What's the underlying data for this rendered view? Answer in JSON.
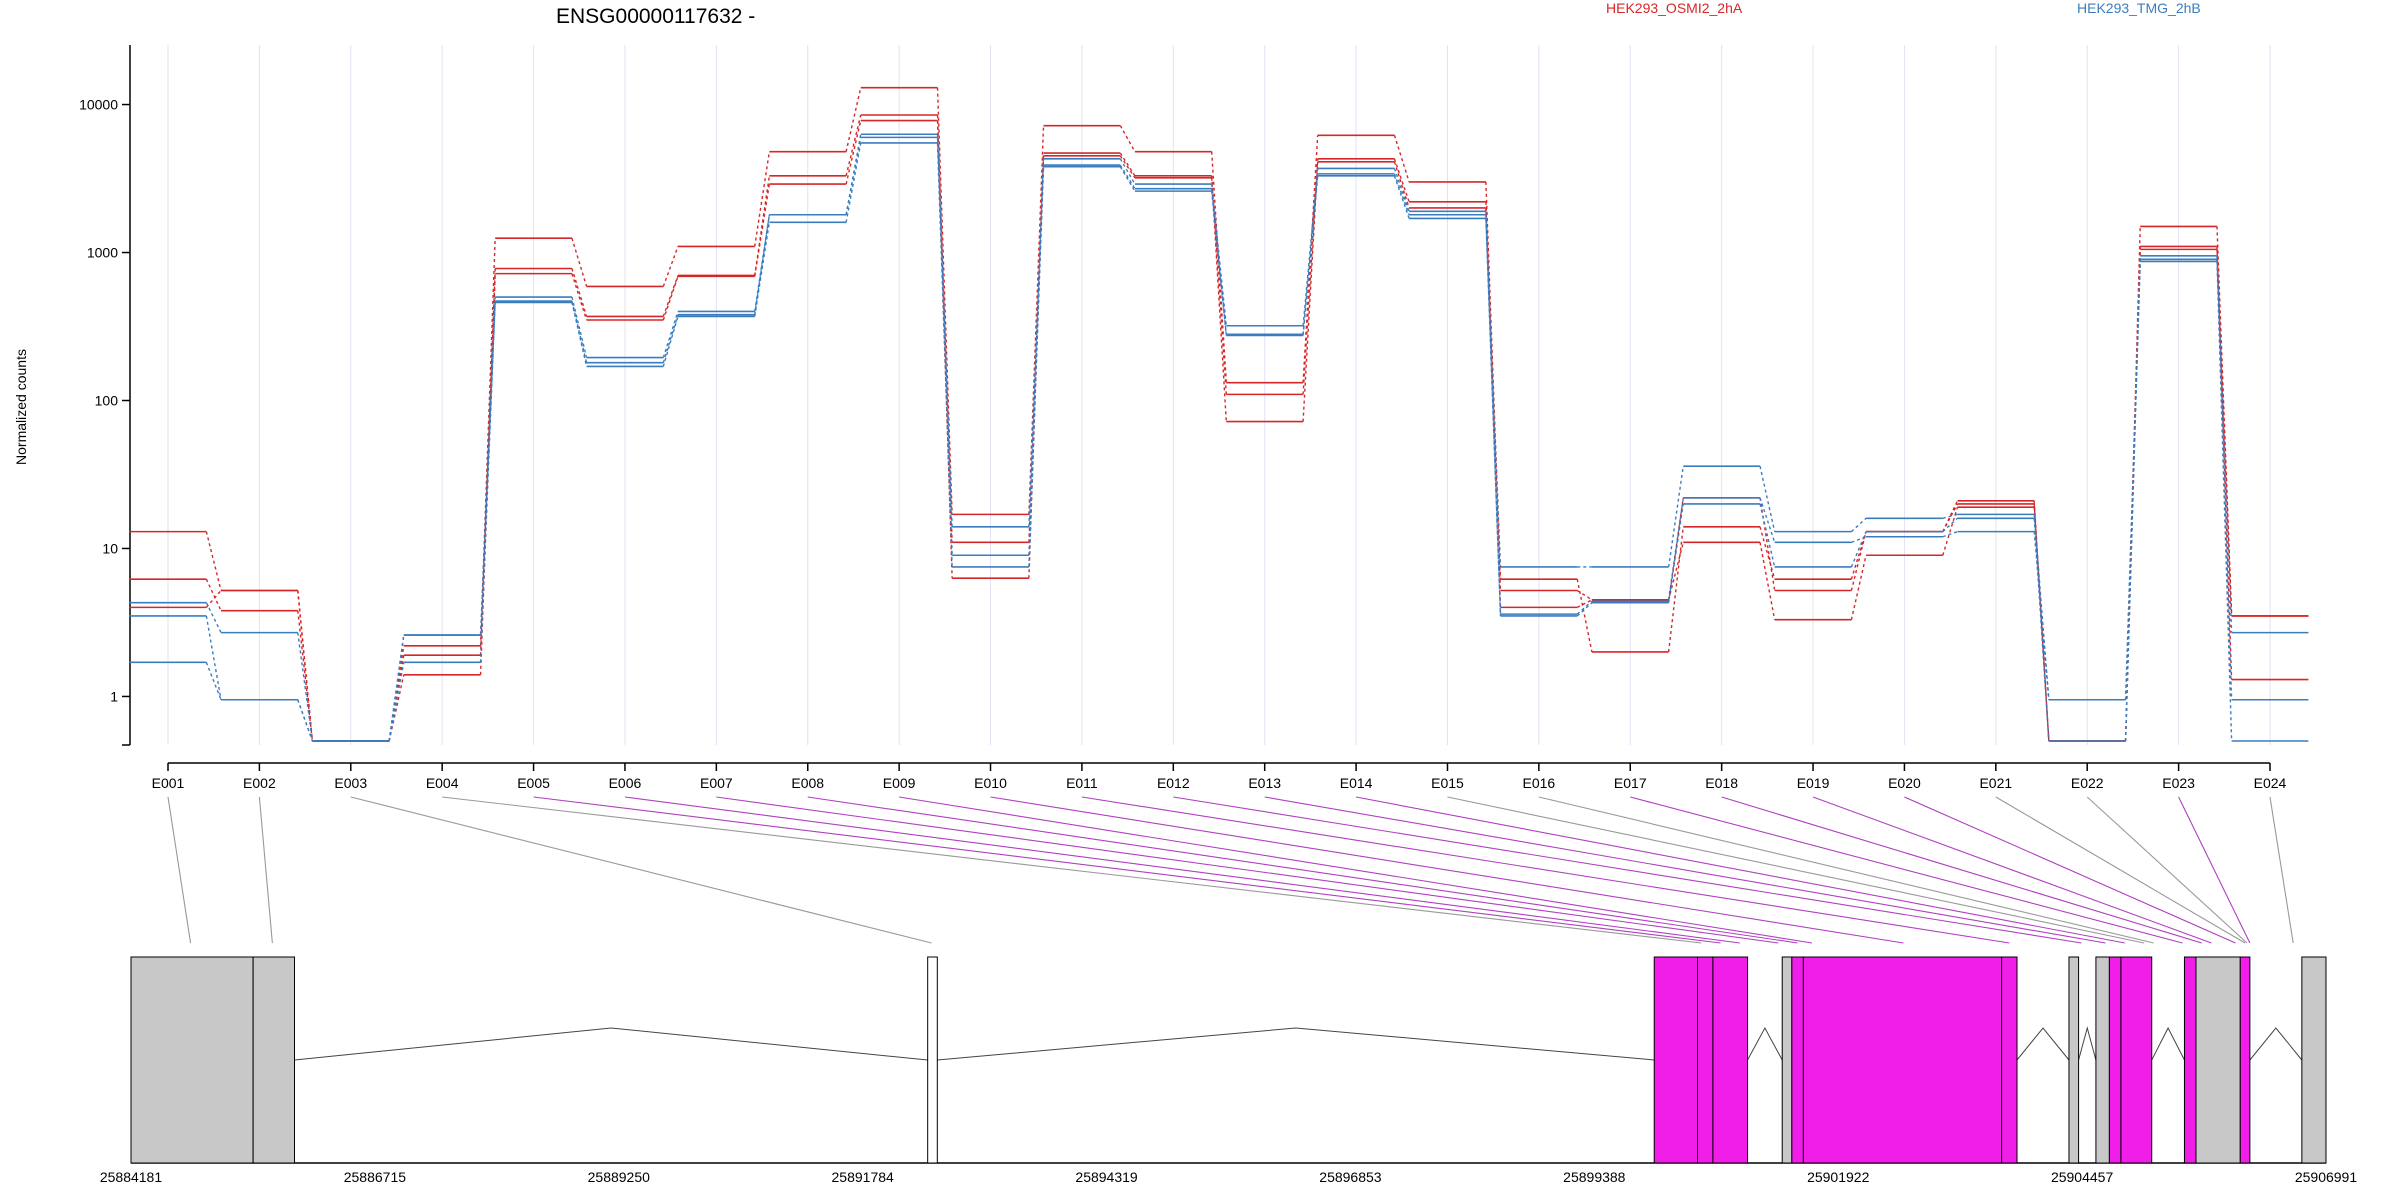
{
  "chart_data": {
    "type": "line",
    "title": "ENSG00000117632 -",
    "ylabel": "Normalized counts",
    "xlabel": "",
    "y_scale": "log",
    "ylim": [
      0.5,
      20000
    ],
    "yticks": [
      1,
      10,
      100,
      1000,
      10000
    ],
    "ytick_labels": [
      "1",
      "10",
      "100",
      "1000",
      "10000"
    ],
    "categories": [
      "E001",
      "E002",
      "E003",
      "E004",
      "E005",
      "E006",
      "E007",
      "E008",
      "E009",
      "E010",
      "E011",
      "E012",
      "E013",
      "E014",
      "E015",
      "E016",
      "E017",
      "E018",
      "E019",
      "E020",
      "E021",
      "E022",
      "E023",
      "E024"
    ],
    "legend": [
      {
        "label": "HEK293_OSMI2_2hA",
        "color": "#d62728"
      },
      {
        "label": "HEK293_TMG_2hB",
        "color": "#3a7dbf"
      }
    ],
    "legend_position": "top",
    "colors": {
      "red": "#d62728",
      "blue": "#3a7dbf",
      "exon_highlight": "#f01ee8",
      "exon_plain": "#c8c8c8",
      "connector_plain": "#999999",
      "connector_highlight": "#b040c0"
    },
    "series": [
      {
        "group": "HEK293_OSMI2_2hA",
        "values": [
          13,
          5.2,
          0.5,
          2.2,
          1250,
          590,
          1100,
          4800,
          13000,
          17,
          7200,
          4800,
          132,
          6200,
          3000,
          6.2,
          2,
          14,
          6.2,
          13,
          21,
          0.5,
          1500,
          3.5
        ]
      },
      {
        "group": "HEK293_OSMI2_2hA",
        "values": [
          6.2,
          3.8,
          0.5,
          1.9,
          780,
          370,
          700,
          3300,
          8500,
          11,
          4700,
          3300,
          110,
          4300,
          2200,
          5.2,
          4.5,
          22,
          5.2,
          13,
          20,
          0.5,
          1100,
          1.3
        ]
      },
      {
        "group": "HEK293_OSMI2_2hA",
        "values": [
          4,
          5.2,
          0.5,
          1.4,
          720,
          350,
          690,
          2900,
          7800,
          6.3,
          4500,
          3200,
          72,
          4100,
          2000,
          4,
          4.5,
          11,
          3.3,
          9,
          19,
          0.5,
          1050,
          3.5
        ]
      },
      {
        "group": "HEK293_TMG_2hB",
        "values": [
          4.3,
          2.7,
          0.5,
          2.6,
          500,
          195,
          400,
          1800,
          6300,
          14,
          4300,
          2900,
          320,
          3700,
          1900,
          7.5,
          7.5,
          36,
          13,
          16,
          17,
          0.95,
          950,
          0.95
        ]
      },
      {
        "group": "HEK293_TMG_2hB",
        "values": [
          3.5,
          0.95,
          0.5,
          1.7,
          470,
          180,
          380,
          1800,
          6000,
          9,
          3900,
          2700,
          280,
          3400,
          1800,
          3.6,
          4.4,
          20,
          7.5,
          13,
          16,
          0.5,
          900,
          2.7
        ]
      },
      {
        "group": "HEK293_TMG_2hB",
        "values": [
          1.7,
          0.95,
          0.5,
          2.6,
          460,
          170,
          370,
          1600,
          5500,
          7.5,
          3800,
          2600,
          275,
          3300,
          1700,
          3.5,
          4.3,
          22,
          11,
          12,
          13,
          0.95,
          870,
          0.5
        ]
      }
    ],
    "gene_model": {
      "genomic_range": [
        25884181,
        25906991
      ],
      "axis_tick_labels": [
        "25884181",
        "25886715",
        "25889250",
        "25891784",
        "25894319",
        "25896853",
        "25899388",
        "25901922",
        "25904457",
        "25906991"
      ],
      "exon_blocks": [
        {
          "start": 25884181,
          "end": 25885450,
          "color": "plain"
        },
        {
          "start": 25885450,
          "end": 25885880,
          "color": "plain"
        },
        {
          "start": 25892460,
          "end": 25892560,
          "color": "white"
        },
        {
          "start": 25900010,
          "end": 25900460,
          "color": "highlight"
        },
        {
          "start": 25900460,
          "end": 25900620,
          "color": "highlight"
        },
        {
          "start": 25900620,
          "end": 25900980,
          "color": "highlight"
        },
        {
          "start": 25901340,
          "end": 25901440,
          "color": "plain"
        },
        {
          "start": 25901440,
          "end": 25901560,
          "color": "highlight"
        },
        {
          "start": 25901560,
          "end": 25903620,
          "color": "highlight"
        },
        {
          "start": 25903620,
          "end": 25903780,
          "color": "highlight"
        },
        {
          "start": 25904320,
          "end": 25904420,
          "color": "plain"
        },
        {
          "start": 25904600,
          "end": 25904740,
          "color": "plain"
        },
        {
          "start": 25904740,
          "end": 25904860,
          "color": "highlight"
        },
        {
          "start": 25904860,
          "end": 25905180,
          "color": "highlight"
        },
        {
          "start": 25905520,
          "end": 25905640,
          "color": "highlight"
        },
        {
          "start": 25905640,
          "end": 25906100,
          "color": "plain"
        },
        {
          "start": 25906100,
          "end": 25906200,
          "color": "highlight"
        },
        {
          "start": 25906740,
          "end": 25906991,
          "color": "plain"
        }
      ],
      "exon_anchor_positions": [
        25884800,
        25885650,
        25892500,
        25900500,
        25900700,
        25900900,
        25901300,
        25901500,
        25901650,
        25902600,
        25903700,
        25904450,
        25904700,
        25904900,
        25905100,
        25905200,
        25905500,
        25905700,
        25905800,
        25906050,
        25906150,
        25906170,
        25906200,
        25906650
      ],
      "connector_highlighted": [
        false,
        false,
        false,
        false,
        true,
        true,
        true,
        true,
        true,
        true,
        true,
        true,
        true,
        true,
        false,
        false,
        true,
        true,
        true,
        true,
        false,
        false,
        true,
        false
      ]
    }
  }
}
